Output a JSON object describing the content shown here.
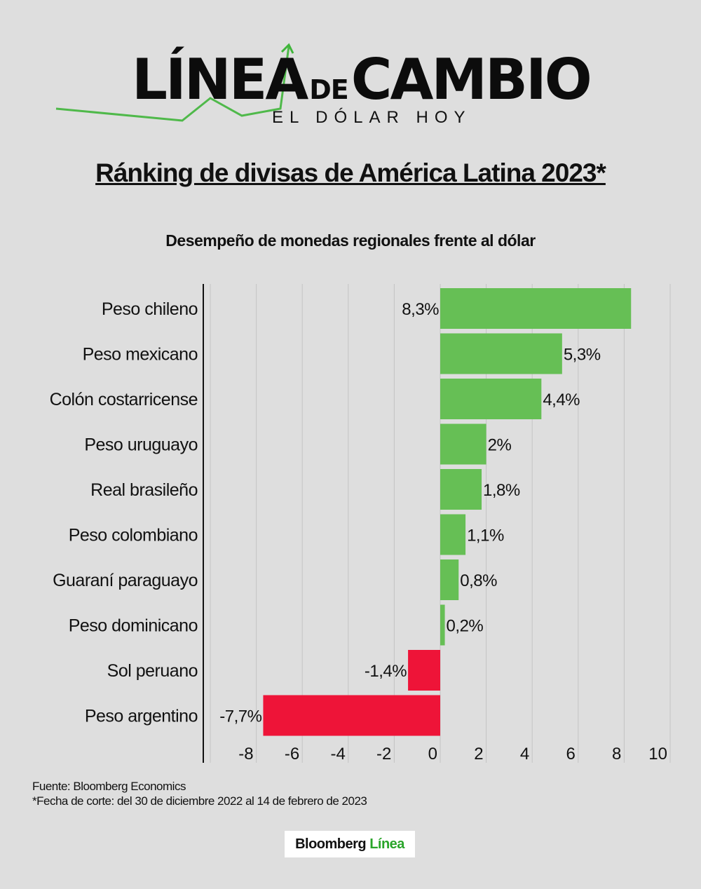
{
  "logo": {
    "main_left": "LÍNEA",
    "main_mid": "DE",
    "main_right": "CAMBIO",
    "sub": "EL DÓLAR HOY"
  },
  "title": "Ránking de divisas de América Latina 2023*",
  "subtitle": "Desempeño de monedas regionales frente al dólar",
  "colors": {
    "positive": "#66bf55",
    "negative": "#ee1438",
    "background": "#dedede"
  },
  "chart_data": {
    "type": "bar",
    "orientation": "horizontal",
    "title": "Ránking de divisas de América Latina 2023*",
    "subtitle": "Desempeño de monedas regionales frente al dólar",
    "categories": [
      "Peso chileno",
      "Peso mexicano",
      "Colón costarricense",
      "Peso uruguayo",
      "Real brasileño",
      "Peso colombiano",
      "Guaraní paraguayo",
      "Peso dominicano",
      "Sol peruano",
      "Peso argentino"
    ],
    "values": [
      8.3,
      5.3,
      4.4,
      2,
      1.8,
      1.1,
      0.8,
      0.2,
      -1.4,
      -7.7
    ],
    "data_labels": [
      "8,3%",
      "5,3%",
      "4,4%",
      "2%",
      "1,8%",
      "1,1%",
      "0,8%",
      "0,2%",
      "-1,4%",
      "-7,7%"
    ],
    "xlim": [
      -10,
      10
    ],
    "xticks": [
      -8,
      -6,
      -4,
      -2,
      0,
      2,
      4,
      6,
      8,
      10
    ],
    "xtick_labels": [
      "-8",
      "-6",
      "-4",
      "-2",
      "0",
      "2",
      "4",
      "6",
      "8",
      "10"
    ],
    "grid": true,
    "xlabel": "",
    "ylabel": ""
  },
  "footer": {
    "source": "Fuente: Bloomberg Economics",
    "note": "*Fecha de corte: del 30 de diciembre 2022 al 14 de febrero de 2023",
    "brand_black": "Bloomberg",
    "brand_green": "Línea"
  }
}
